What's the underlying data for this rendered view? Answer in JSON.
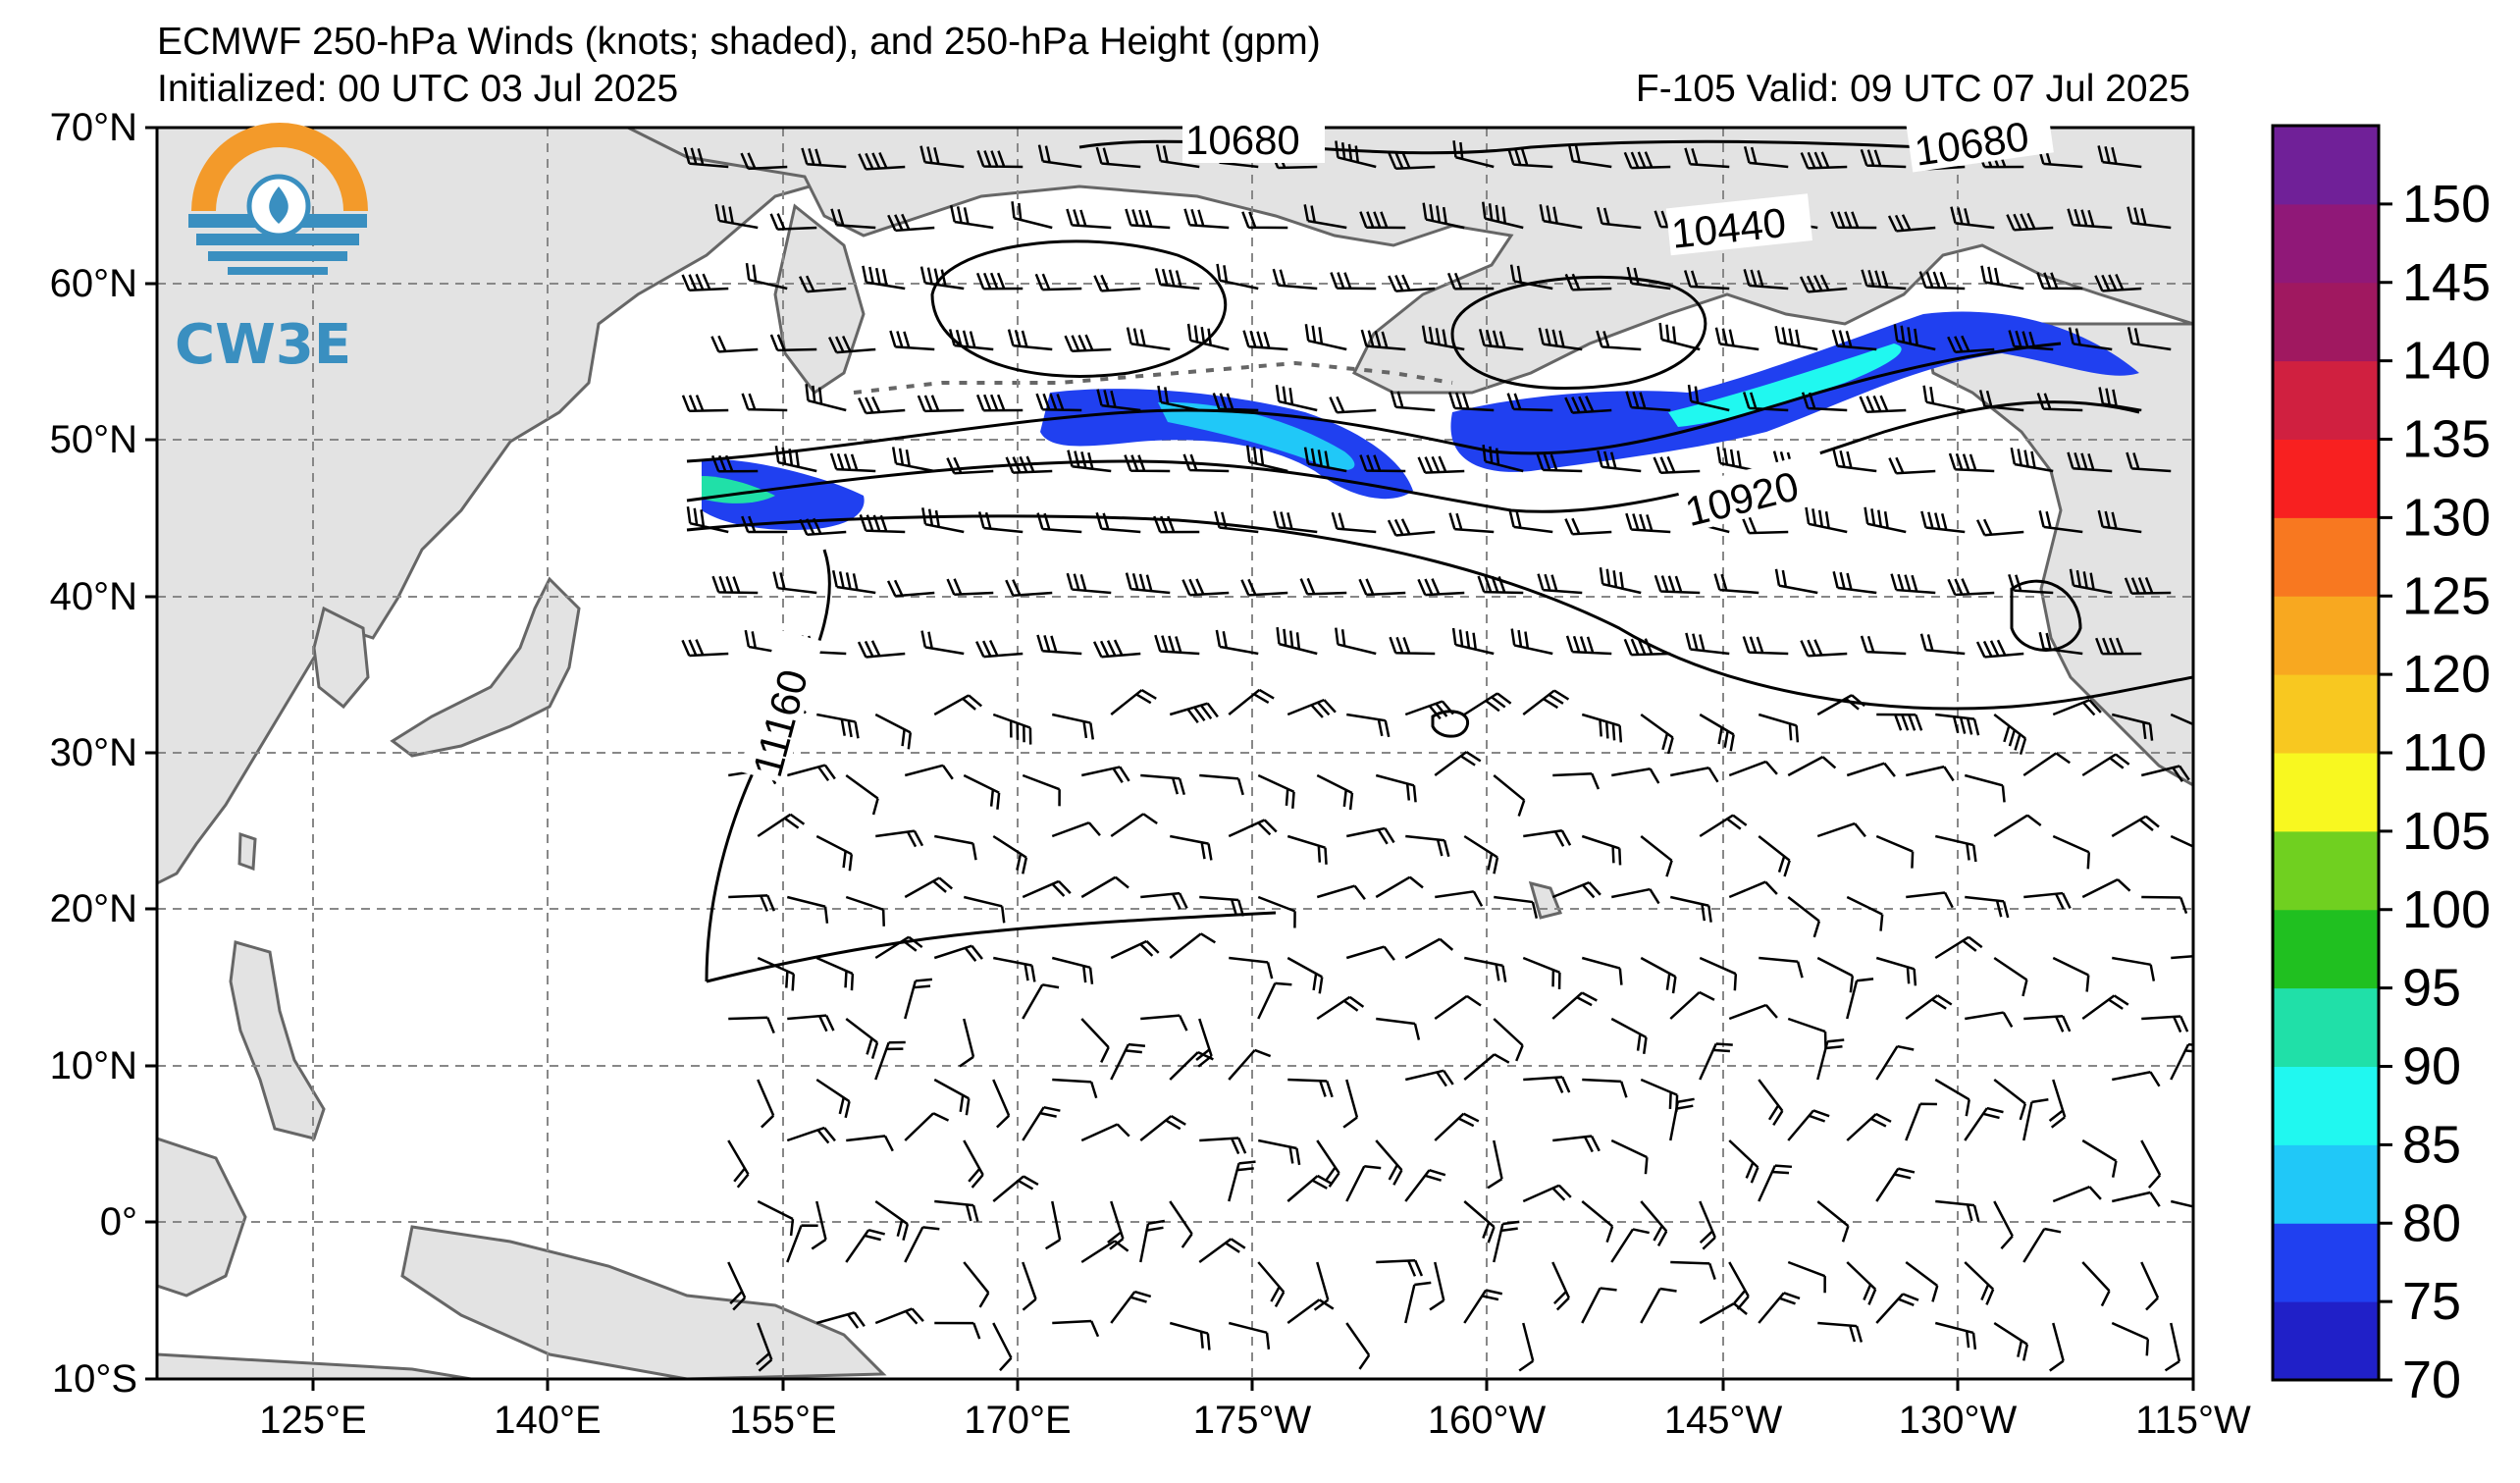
{
  "header": {
    "title": "ECMWF 250-hPa Winds (knots; shaded), and 250-hPa Height (gpm)",
    "initialized": "Initialized: 00 UTC 03 Jul 2025",
    "valid": "F-105  Valid: 09 UTC 07 Jul 2025"
  },
  "logo": {
    "text": "CW3E",
    "icon": "water-drop-sun-icon"
  },
  "map": {
    "lon_range": [
      113,
      245
    ],
    "lat_range": [
      -10,
      70
    ],
    "lat_labels": [
      "70°N",
      "60°N",
      "50°N",
      "40°N",
      "30°N",
      "20°N",
      "10°N",
      "0°",
      "10°S"
    ],
    "lon_labels": [
      "125°E",
      "140°E",
      "155°E",
      "170°E",
      "175°W",
      "160°W",
      "145°W",
      "130°W",
      "115°W"
    ],
    "land_color": "#e3e3e3",
    "coast_color": "#666666"
  },
  "contours": {
    "labels": [
      "10680",
      "10680",
      "10440",
      "10920",
      "11160"
    ]
  },
  "colorbar": {
    "ticks": [
      "70",
      "75",
      "80",
      "85",
      "90",
      "95",
      "100",
      "105",
      "110",
      "120",
      "125",
      "130",
      "135",
      "140",
      "145",
      "150"
    ],
    "colors": [
      "#2020c8",
      "#2040f0",
      "#20c8f8",
      "#20f8f0",
      "#20e0a8",
      "#20c020",
      "#70d020",
      "#f8f820",
      "#f8c820",
      "#f8a820",
      "#f87820",
      "#f82020",
      "#d02040",
      "#a01860",
      "#901878",
      "#702098"
    ]
  }
}
